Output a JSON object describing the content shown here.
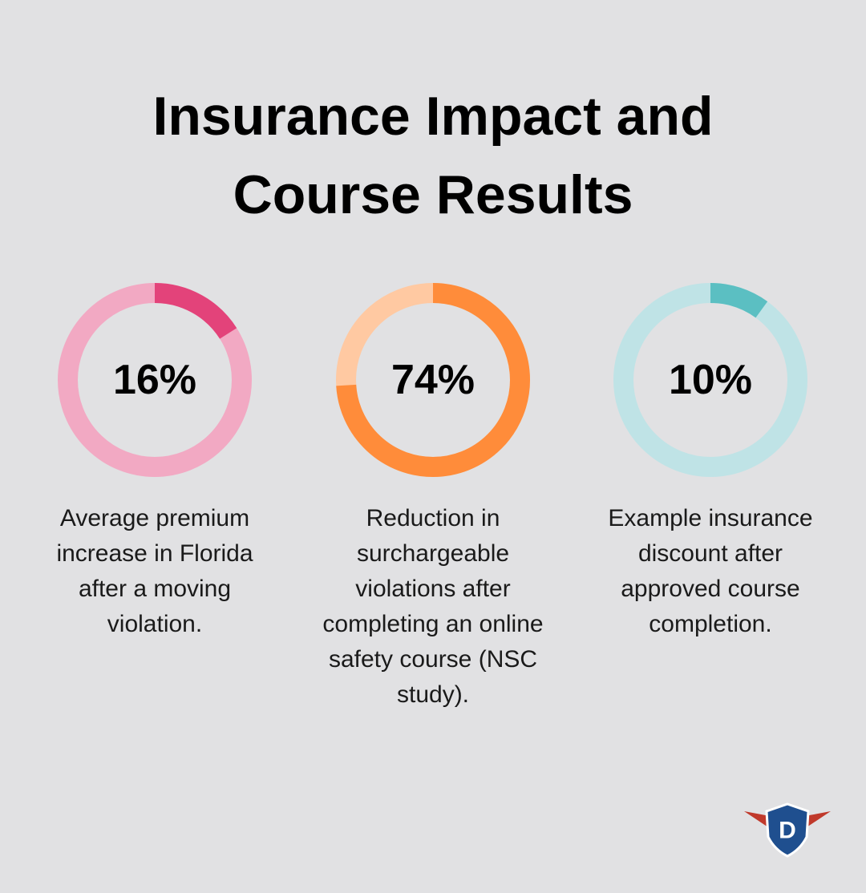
{
  "title": "Insurance Impact and Course Results",
  "chart_data": [
    {
      "type": "donut",
      "values": [
        16
      ],
      "value_labels": [
        "16%"
      ],
      "description": "Average premium increase in Florida after a moving violation.",
      "color": "#e3437a",
      "track_color": "#f2a9c3"
    },
    {
      "type": "donut",
      "values": [
        74
      ],
      "value_labels": [
        "74%"
      ],
      "description": "Reduction in surchargeable violations after completing an online safety course (NSC study).",
      "color": "#ff8c3a",
      "track_color": "#ffc9a2"
    },
    {
      "type": "donut",
      "values": [
        10
      ],
      "value_labels": [
        "10%"
      ],
      "description": "Example insurance discount after approved course completion.",
      "color": "#5bbfc2",
      "track_color": "#bfe3e6"
    }
  ],
  "logo": "D"
}
